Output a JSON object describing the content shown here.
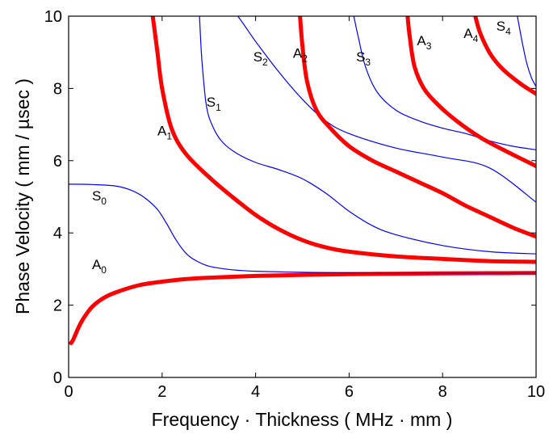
{
  "chart_data": {
    "type": "line",
    "title": "",
    "xlabel": "Frequency · Thickness ( MHz · mm )",
    "ylabel": "Phase Velocity ( mm / µsec )",
    "xlim": [
      0,
      10
    ],
    "ylim": [
      0,
      10
    ],
    "xticks": [
      "0",
      "2",
      "4",
      "6",
      "8",
      "10"
    ],
    "yticks": [
      "0",
      "2",
      "4",
      "6",
      "8",
      "10"
    ],
    "grid": false,
    "legend": "none",
    "colors": {
      "antisymmetric": "#ff0000",
      "symmetric": "#0000ff"
    },
    "series": [
      {
        "name": "A0",
        "family": "antisymmetric",
        "label": {
          "base": "A",
          "sub": "0",
          "x": 0.5,
          "y": 3.0
        },
        "x": [
          0.05,
          0.1,
          0.2,
          0.3,
          0.5,
          0.75,
          1.0,
          1.5,
          2.0,
          2.5,
          3.0,
          4.0,
          5.0,
          6.0,
          7.0,
          8.0,
          9.0,
          10.0
        ],
        "y": [
          0.95,
          1.05,
          1.35,
          1.6,
          1.95,
          2.2,
          2.35,
          2.55,
          2.65,
          2.72,
          2.76,
          2.81,
          2.84,
          2.86,
          2.87,
          2.88,
          2.885,
          2.89
        ]
      },
      {
        "name": "S0",
        "family": "symmetric",
        "label": {
          "base": "S",
          "sub": "0",
          "x": 0.5,
          "y": 4.9
        },
        "x": [
          0.0,
          0.5,
          1.0,
          1.3,
          1.6,
          1.9,
          2.1,
          2.3,
          2.5,
          2.7,
          3.0,
          3.5,
          4.0,
          5.0,
          6.0,
          8.0,
          10.0
        ],
        "y": [
          5.35,
          5.34,
          5.3,
          5.2,
          5.0,
          4.65,
          4.25,
          3.8,
          3.45,
          3.25,
          3.08,
          2.98,
          2.94,
          2.91,
          2.9,
          2.89,
          2.89
        ]
      },
      {
        "name": "A1",
        "family": "antisymmetric",
        "label": {
          "base": "A",
          "sub": "1",
          "x": 1.9,
          "y": 6.7
        },
        "x": [
          1.8,
          1.9,
          2.0,
          2.2,
          2.5,
          3.0,
          3.5,
          4.0,
          4.5,
          5.0,
          5.5,
          6.0,
          7.0,
          8.0,
          9.0,
          10.0
        ],
        "y": [
          10.0,
          9.0,
          8.0,
          6.9,
          6.2,
          5.55,
          5.0,
          4.5,
          4.1,
          3.8,
          3.6,
          3.48,
          3.35,
          3.28,
          3.22,
          3.2
        ]
      },
      {
        "name": "S1",
        "family": "symmetric",
        "label": {
          "base": "S",
          "sub": "1",
          "x": 2.95,
          "y": 7.5
        },
        "x": [
          2.8,
          2.85,
          2.95,
          3.1,
          3.3,
          3.6,
          4.0,
          4.5,
          5.0,
          5.5,
          6.0,
          6.5,
          7.0,
          8.0,
          9.0,
          10.0
        ],
        "y": [
          10.0,
          8.8,
          7.5,
          6.9,
          6.5,
          6.2,
          5.95,
          5.75,
          5.5,
          5.1,
          4.6,
          4.2,
          3.95,
          3.65,
          3.48,
          3.42
        ]
      },
      {
        "name": "S2",
        "family": "symmetric",
        "label": {
          "base": "S",
          "sub": "2",
          "x": 3.95,
          "y": 8.75
        },
        "x": [
          3.0,
          3.5,
          4.0,
          4.5,
          5.0,
          5.5,
          6.0,
          7.0,
          8.0,
          9.0,
          10.0
        ],
        "y": [
          10.8,
          10.2,
          9.3,
          8.45,
          7.7,
          7.1,
          6.75,
          6.35,
          6.1,
          5.8,
          4.85
        ]
      },
      {
        "name": "A2",
        "family": "antisymmetric",
        "label": {
          "base": "A",
          "sub": "2",
          "x": 4.8,
          "y": 8.85
        },
        "x": [
          4.95,
          5.0,
          5.1,
          5.3,
          5.6,
          6.0,
          6.5,
          7.0,
          7.5,
          8.0,
          8.5,
          9.0,
          9.5,
          10.0
        ],
        "y": [
          10.0,
          9.2,
          8.2,
          7.4,
          6.9,
          6.4,
          6.0,
          5.7,
          5.4,
          5.1,
          4.75,
          4.45,
          4.15,
          3.9
        ]
      },
      {
        "name": "S3",
        "family": "symmetric",
        "label": {
          "base": "S",
          "sub": "3",
          "x": 6.15,
          "y": 8.75
        },
        "x": [
          6.1,
          6.2,
          6.35,
          6.6,
          7.0,
          7.5,
          8.0,
          8.5,
          9.0,
          9.5,
          10.0
        ],
        "y": [
          10.0,
          9.4,
          8.6,
          7.9,
          7.4,
          7.1,
          6.9,
          6.75,
          6.55,
          6.4,
          6.3
        ]
      },
      {
        "name": "A3",
        "family": "antisymmetric",
        "label": {
          "base": "A",
          "sub": "3",
          "x": 7.45,
          "y": 9.2
        },
        "x": [
          7.25,
          7.3,
          7.4,
          7.6,
          7.9,
          8.3,
          8.8,
          9.3,
          10.0
        ],
        "y": [
          10.0,
          9.4,
          8.6,
          8.0,
          7.55,
          7.1,
          6.65,
          6.3,
          5.85
        ]
      },
      {
        "name": "A4",
        "family": "antisymmetric",
        "label": {
          "base": "A",
          "sub": "4",
          "x": 8.45,
          "y": 9.4
        },
        "x": [
          8.7,
          8.8,
          9.0,
          9.2,
          9.4,
          9.7,
          10.0
        ],
        "y": [
          10.0,
          9.55,
          9.0,
          8.65,
          8.4,
          8.1,
          7.85
        ]
      },
      {
        "name": "S4",
        "family": "symmetric",
        "label": {
          "base": "S",
          "sub": "4",
          "x": 9.15,
          "y": 9.6
        },
        "x": [
          9.6,
          9.7,
          9.8,
          9.9,
          10.0
        ],
        "y": [
          10.0,
          9.3,
          8.7,
          8.3,
          8.05
        ]
      }
    ]
  }
}
